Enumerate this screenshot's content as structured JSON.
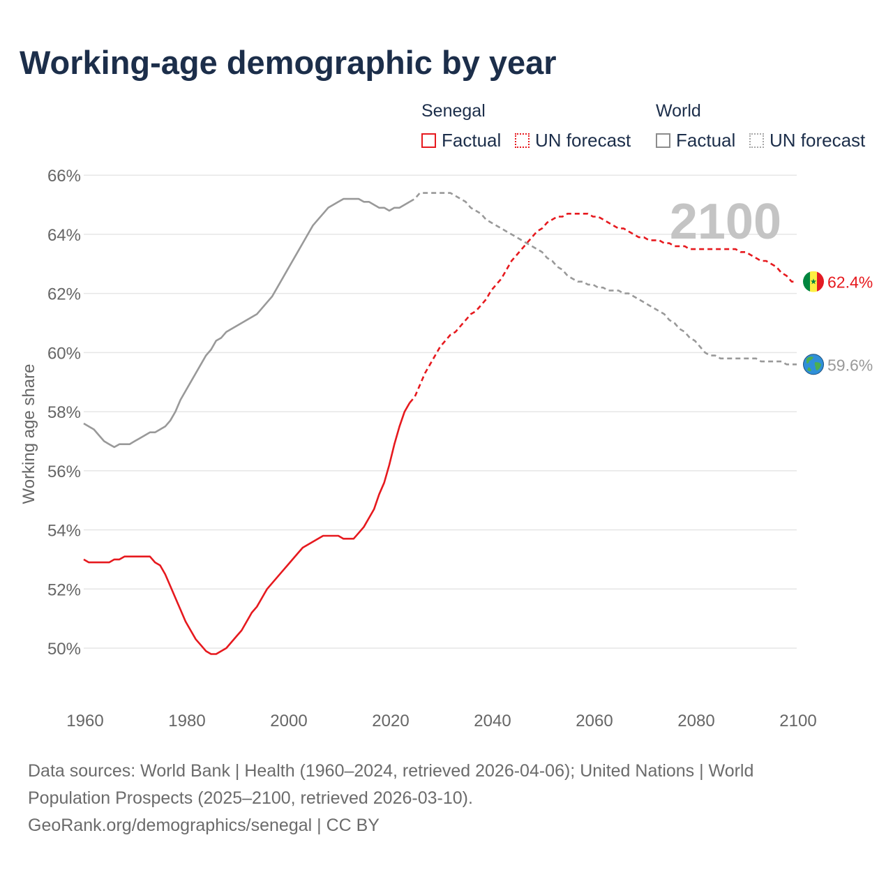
{
  "title": "Working-age demographic by year",
  "legend": {
    "groups": [
      {
        "name": "Senegal",
        "factual": "Factual",
        "forecast": "UN forecast"
      },
      {
        "name": "World",
        "factual": "Factual",
        "forecast": "UN forecast"
      }
    ]
  },
  "colors": {
    "senegal": "#e6191e",
    "world": "#999999",
    "year_watermark": "#c4c4c4",
    "grid": "#e6e6e6"
  },
  "icons": {
    "senegal": "senegal-flag-icon",
    "world": "globe-icon"
  },
  "footer": {
    "line1": "Data sources: World Bank | Health (1960–2024, retrieved 2026-04-06); United Nations | World",
    "line2": "Population Prospects (2025–2100, retrieved 2026-03-10).",
    "line3": "GeoRank.org/demographics/senegal | CC BY"
  },
  "chart_data": {
    "type": "line",
    "ylabel": "Working age share",
    "xlabel": "",
    "xlim": [
      1960,
      2100
    ],
    "ylim": [
      48.3,
      66.5
    ],
    "x_ticks": [
      1960,
      1980,
      2000,
      2020,
      2040,
      2060,
      2080,
      2100
    ],
    "x_tick_labels": [
      "1960",
      "1980",
      "2000",
      "2020",
      "2040",
      "2060",
      "2080",
      "2100"
    ],
    "y_ticks": [
      50,
      52,
      54,
      56,
      58,
      60,
      62,
      64,
      66
    ],
    "y_tick_labels": [
      "50%",
      "52%",
      "54%",
      "56%",
      "58%",
      "60%",
      "62%",
      "64%",
      "66%"
    ],
    "year_watermark": "2100",
    "factual_end_year": 2024,
    "series": [
      {
        "name": "Senegal",
        "end_label": "62.4%",
        "points": [
          [
            1960,
            53.0
          ],
          [
            1961,
            52.9
          ],
          [
            1962,
            52.9
          ],
          [
            1963,
            52.9
          ],
          [
            1964,
            52.9
          ],
          [
            1965,
            52.9
          ],
          [
            1966,
            53.0
          ],
          [
            1967,
            53.0
          ],
          [
            1968,
            53.1
          ],
          [
            1969,
            53.1
          ],
          [
            1970,
            53.1
          ],
          [
            1971,
            53.1
          ],
          [
            1972,
            53.1
          ],
          [
            1973,
            53.1
          ],
          [
            1974,
            52.9
          ],
          [
            1975,
            52.8
          ],
          [
            1976,
            52.5
          ],
          [
            1977,
            52.1
          ],
          [
            1978,
            51.7
          ],
          [
            1979,
            51.3
          ],
          [
            1980,
            50.9
          ],
          [
            1981,
            50.6
          ],
          [
            1982,
            50.3
          ],
          [
            1983,
            50.1
          ],
          [
            1984,
            49.9
          ],
          [
            1985,
            49.8
          ],
          [
            1986,
            49.8
          ],
          [
            1987,
            49.9
          ],
          [
            1988,
            50.0
          ],
          [
            1989,
            50.2
          ],
          [
            1990,
            50.4
          ],
          [
            1991,
            50.6
          ],
          [
            1992,
            50.9
          ],
          [
            1993,
            51.2
          ],
          [
            1994,
            51.4
          ],
          [
            1995,
            51.7
          ],
          [
            1996,
            52.0
          ],
          [
            1997,
            52.2
          ],
          [
            1998,
            52.4
          ],
          [
            1999,
            52.6
          ],
          [
            2000,
            52.8
          ],
          [
            2001,
            53.0
          ],
          [
            2002,
            53.2
          ],
          [
            2003,
            53.4
          ],
          [
            2004,
            53.5
          ],
          [
            2005,
            53.6
          ],
          [
            2006,
            53.7
          ],
          [
            2007,
            53.8
          ],
          [
            2008,
            53.8
          ],
          [
            2009,
            53.8
          ],
          [
            2010,
            53.8
          ],
          [
            2011,
            53.7
          ],
          [
            2012,
            53.7
          ],
          [
            2013,
            53.7
          ],
          [
            2014,
            53.9
          ],
          [
            2015,
            54.1
          ],
          [
            2016,
            54.4
          ],
          [
            2017,
            54.7
          ],
          [
            2018,
            55.2
          ],
          [
            2019,
            55.6
          ],
          [
            2020,
            56.2
          ],
          [
            2021,
            56.9
          ],
          [
            2022,
            57.5
          ],
          [
            2023,
            58.0
          ],
          [
            2024,
            58.3
          ],
          [
            2025,
            58.5
          ],
          [
            2026,
            58.9
          ],
          [
            2027,
            59.3
          ],
          [
            2028,
            59.6
          ],
          [
            2029,
            59.9
          ],
          [
            2030,
            60.2
          ],
          [
            2031,
            60.4
          ],
          [
            2032,
            60.6
          ],
          [
            2033,
            60.7
          ],
          [
            2034,
            60.9
          ],
          [
            2035,
            61.1
          ],
          [
            2036,
            61.3
          ],
          [
            2037,
            61.4
          ],
          [
            2038,
            61.6
          ],
          [
            2039,
            61.8
          ],
          [
            2040,
            62.1
          ],
          [
            2041,
            62.3
          ],
          [
            2042,
            62.5
          ],
          [
            2043,
            62.8
          ],
          [
            2044,
            63.1
          ],
          [
            2045,
            63.3
          ],
          [
            2046,
            63.5
          ],
          [
            2047,
            63.7
          ],
          [
            2048,
            63.9
          ],
          [
            2049,
            64.1
          ],
          [
            2050,
            64.2
          ],
          [
            2051,
            64.4
          ],
          [
            2052,
            64.5
          ],
          [
            2053,
            64.6
          ],
          [
            2054,
            64.6
          ],
          [
            2055,
            64.7
          ],
          [
            2056,
            64.7
          ],
          [
            2057,
            64.7
          ],
          [
            2058,
            64.7
          ],
          [
            2059,
            64.7
          ],
          [
            2060,
            64.6
          ],
          [
            2061,
            64.6
          ],
          [
            2062,
            64.5
          ],
          [
            2063,
            64.4
          ],
          [
            2064,
            64.3
          ],
          [
            2065,
            64.2
          ],
          [
            2066,
            64.2
          ],
          [
            2067,
            64.1
          ],
          [
            2068,
            64.0
          ],
          [
            2069,
            63.9
          ],
          [
            2070,
            63.9
          ],
          [
            2071,
            63.8
          ],
          [
            2072,
            63.8
          ],
          [
            2073,
            63.8
          ],
          [
            2074,
            63.7
          ],
          [
            2075,
            63.7
          ],
          [
            2076,
            63.6
          ],
          [
            2077,
            63.6
          ],
          [
            2078,
            63.6
          ],
          [
            2079,
            63.5
          ],
          [
            2080,
            63.5
          ],
          [
            2081,
            63.5
          ],
          [
            2082,
            63.5
          ],
          [
            2083,
            63.5
          ],
          [
            2084,
            63.5
          ],
          [
            2085,
            63.5
          ],
          [
            2086,
            63.5
          ],
          [
            2087,
            63.5
          ],
          [
            2088,
            63.5
          ],
          [
            2089,
            63.4
          ],
          [
            2090,
            63.4
          ],
          [
            2091,
            63.3
          ],
          [
            2092,
            63.2
          ],
          [
            2093,
            63.1
          ],
          [
            2094,
            63.1
          ],
          [
            2095,
            63.0
          ],
          [
            2096,
            62.9
          ],
          [
            2097,
            62.7
          ],
          [
            2098,
            62.6
          ],
          [
            2099,
            62.4
          ],
          [
            2100,
            62.4
          ]
        ]
      },
      {
        "name": "World",
        "end_label": "59.6%",
        "points": [
          [
            1960,
            57.6
          ],
          [
            1961,
            57.5
          ],
          [
            1962,
            57.4
          ],
          [
            1963,
            57.2
          ],
          [
            1964,
            57.0
          ],
          [
            1965,
            56.9
          ],
          [
            1966,
            56.8
          ],
          [
            1967,
            56.9
          ],
          [
            1968,
            56.9
          ],
          [
            1969,
            56.9
          ],
          [
            1970,
            57.0
          ],
          [
            1971,
            57.1
          ],
          [
            1972,
            57.2
          ],
          [
            1973,
            57.3
          ],
          [
            1974,
            57.3
          ],
          [
            1975,
            57.4
          ],
          [
            1976,
            57.5
          ],
          [
            1977,
            57.7
          ],
          [
            1978,
            58.0
          ],
          [
            1979,
            58.4
          ],
          [
            1980,
            58.7
          ],
          [
            1981,
            59.0
          ],
          [
            1982,
            59.3
          ],
          [
            1983,
            59.6
          ],
          [
            1984,
            59.9
          ],
          [
            1985,
            60.1
          ],
          [
            1986,
            60.4
          ],
          [
            1987,
            60.5
          ],
          [
            1988,
            60.7
          ],
          [
            1989,
            60.8
          ],
          [
            1990,
            60.9
          ],
          [
            1991,
            61.0
          ],
          [
            1992,
            61.1
          ],
          [
            1993,
            61.2
          ],
          [
            1994,
            61.3
          ],
          [
            1995,
            61.5
          ],
          [
            1996,
            61.7
          ],
          [
            1997,
            61.9
          ],
          [
            1998,
            62.2
          ],
          [
            1999,
            62.5
          ],
          [
            2000,
            62.8
          ],
          [
            2001,
            63.1
          ],
          [
            2002,
            63.4
          ],
          [
            2003,
            63.7
          ],
          [
            2004,
            64.0
          ],
          [
            2005,
            64.3
          ],
          [
            2006,
            64.5
          ],
          [
            2007,
            64.7
          ],
          [
            2008,
            64.9
          ],
          [
            2009,
            65.0
          ],
          [
            2010,
            65.1
          ],
          [
            2011,
            65.2
          ],
          [
            2012,
            65.2
          ],
          [
            2013,
            65.2
          ],
          [
            2014,
            65.2
          ],
          [
            2015,
            65.1
          ],
          [
            2016,
            65.1
          ],
          [
            2017,
            65.0
          ],
          [
            2018,
            64.9
          ],
          [
            2019,
            64.9
          ],
          [
            2020,
            64.8
          ],
          [
            2021,
            64.9
          ],
          [
            2022,
            64.9
          ],
          [
            2023,
            65.0
          ],
          [
            2024,
            65.1
          ],
          [
            2025,
            65.2
          ],
          [
            2026,
            65.4
          ],
          [
            2027,
            65.4
          ],
          [
            2028,
            65.4
          ],
          [
            2029,
            65.4
          ],
          [
            2030,
            65.4
          ],
          [
            2031,
            65.4
          ],
          [
            2032,
            65.4
          ],
          [
            2033,
            65.3
          ],
          [
            2034,
            65.2
          ],
          [
            2035,
            65.1
          ],
          [
            2036,
            64.9
          ],
          [
            2037,
            64.8
          ],
          [
            2038,
            64.7
          ],
          [
            2039,
            64.5
          ],
          [
            2040,
            64.4
          ],
          [
            2041,
            64.3
          ],
          [
            2042,
            64.2
          ],
          [
            2043,
            64.1
          ],
          [
            2044,
            64.0
          ],
          [
            2045,
            63.9
          ],
          [
            2046,
            63.8
          ],
          [
            2047,
            63.7
          ],
          [
            2048,
            63.6
          ],
          [
            2049,
            63.5
          ],
          [
            2050,
            63.4
          ],
          [
            2051,
            63.2
          ],
          [
            2052,
            63.1
          ],
          [
            2053,
            62.9
          ],
          [
            2054,
            62.8
          ],
          [
            2055,
            62.6
          ],
          [
            2056,
            62.5
          ],
          [
            2057,
            62.4
          ],
          [
            2058,
            62.4
          ],
          [
            2059,
            62.3
          ],
          [
            2060,
            62.3
          ],
          [
            2061,
            62.2
          ],
          [
            2062,
            62.2
          ],
          [
            2063,
            62.1
          ],
          [
            2064,
            62.1
          ],
          [
            2065,
            62.1
          ],
          [
            2066,
            62.0
          ],
          [
            2067,
            62.0
          ],
          [
            2068,
            61.9
          ],
          [
            2069,
            61.8
          ],
          [
            2070,
            61.7
          ],
          [
            2071,
            61.6
          ],
          [
            2072,
            61.5
          ],
          [
            2073,
            61.4
          ],
          [
            2074,
            61.3
          ],
          [
            2075,
            61.1
          ],
          [
            2076,
            61.0
          ],
          [
            2077,
            60.8
          ],
          [
            2078,
            60.7
          ],
          [
            2079,
            60.5
          ],
          [
            2080,
            60.4
          ],
          [
            2081,
            60.2
          ],
          [
            2082,
            60.0
          ],
          [
            2083,
            59.9
          ],
          [
            2084,
            59.9
          ],
          [
            2085,
            59.8
          ],
          [
            2086,
            59.8
          ],
          [
            2087,
            59.8
          ],
          [
            2088,
            59.8
          ],
          [
            2089,
            59.8
          ],
          [
            2090,
            59.8
          ],
          [
            2091,
            59.8
          ],
          [
            2092,
            59.8
          ],
          [
            2093,
            59.7
          ],
          [
            2094,
            59.7
          ],
          [
            2095,
            59.7
          ],
          [
            2096,
            59.7
          ],
          [
            2097,
            59.7
          ],
          [
            2098,
            59.6
          ],
          [
            2099,
            59.6
          ],
          [
            2100,
            59.6
          ]
        ]
      }
    ]
  }
}
